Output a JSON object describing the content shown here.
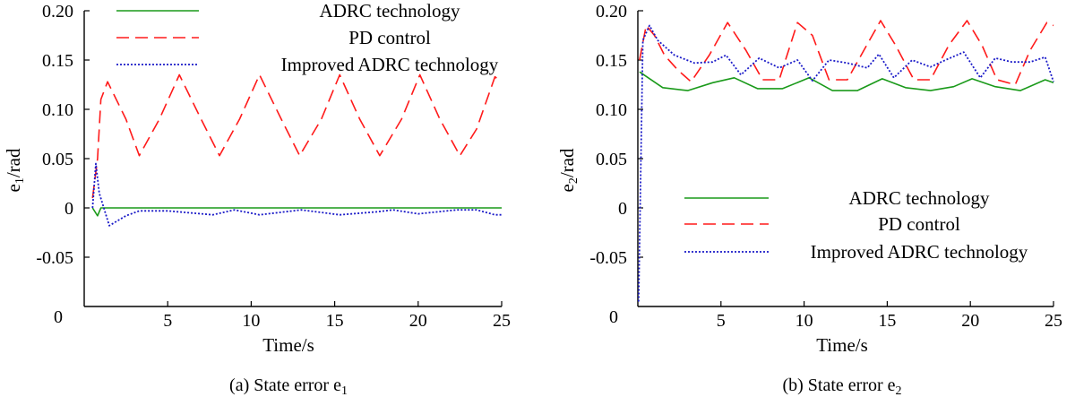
{
  "chart_data": [
    {
      "type": "line",
      "id": "a",
      "caption": "(a) State error e",
      "caption_sub": "1",
      "xlabel": "Time/s",
      "ylabel_main": "e",
      "ylabel_sub": "1",
      "ylabel_unit": "/rad",
      "xlim": [
        0,
        25
      ],
      "ylim": [
        -0.1,
        0.2
      ],
      "xticks": [
        0,
        5,
        10,
        15,
        20,
        25
      ],
      "xtick_labels": [
        "0",
        "5",
        "10",
        "15",
        "20",
        "25"
      ],
      "yticks": [
        -0.05,
        0,
        0.05,
        0.1,
        0.15,
        0.2
      ],
      "ytick_labels": [
        "-0.05",
        "0",
        "0.05",
        "0.10",
        "0.15",
        "0.20"
      ],
      "origin_label": "0",
      "legend_position": "top",
      "series": [
        {
          "name": "ADRC technology",
          "color": "#1a9a1a",
          "style": "solid",
          "x": [
            0.5,
            0.8,
            1.0,
            1.5,
            3,
            5,
            8,
            10,
            13,
            15,
            18,
            20,
            23,
            25
          ],
          "y": [
            0.0,
            -0.008,
            0.0,
            0.0,
            0.0,
            0.0,
            0.0,
            0.0,
            0.0,
            0.0,
            0.0,
            0.0,
            0.0,
            0.0
          ]
        },
        {
          "name": "PD control",
          "color": "#ff1a1a",
          "style": "dashed",
          "x": [
            0.5,
            0.8,
            1.0,
            1.4,
            2.5,
            3.3,
            4.5,
            5.7,
            7.0,
            8.1,
            9.3,
            10.5,
            11.8,
            12.9,
            14.2,
            15.3,
            16.5,
            17.7,
            19.0,
            20.1,
            21.3,
            22.5,
            23.5,
            24.6,
            25.0
          ],
          "y": [
            0.01,
            0.05,
            0.11,
            0.128,
            0.09,
            0.053,
            0.09,
            0.135,
            0.09,
            0.053,
            0.09,
            0.135,
            0.09,
            0.053,
            0.09,
            0.135,
            0.09,
            0.053,
            0.09,
            0.135,
            0.09,
            0.053,
            0.08,
            0.133,
            0.128
          ]
        },
        {
          "name": "Improved ADRC technology",
          "color": "#1a1ac8",
          "style": "dotted",
          "x": [
            0.5,
            0.7,
            0.9,
            1.5,
            2.5,
            3.3,
            5,
            7.7,
            9,
            10.5,
            13,
            15.3,
            17.5,
            18.5,
            20,
            22.3,
            23.5,
            24.6,
            25
          ],
          "y": [
            0.0,
            0.045,
            0.015,
            -0.018,
            -0.008,
            -0.003,
            -0.003,
            -0.007,
            -0.002,
            -0.007,
            -0.002,
            -0.007,
            -0.004,
            -0.002,
            -0.006,
            -0.002,
            -0.002,
            -0.007,
            -0.007
          ]
        }
      ]
    },
    {
      "type": "line",
      "id": "b",
      "caption": "(b) State error e",
      "caption_sub": "2",
      "xlabel": "Time/s",
      "ylabel_main": "e",
      "ylabel_sub": "2",
      "ylabel_unit": "/rad",
      "xlim": [
        0,
        25
      ],
      "ylim": [
        -0.1,
        0.2
      ],
      "xticks": [
        0,
        5,
        10,
        15,
        20,
        25
      ],
      "xtick_labels": [
        "0",
        "5",
        "10",
        "15",
        "20",
        "25"
      ],
      "yticks": [
        -0.05,
        0,
        0.05,
        0.1,
        0.15,
        0.2
      ],
      "ytick_labels": [
        "-0.05",
        "0",
        "0.05",
        "0.10",
        "0.15",
        "0.20"
      ],
      "origin_label": "0",
      "legend_position": "center-right",
      "series": [
        {
          "name": "ADRC technology",
          "color": "#1a9a1a",
          "style": "solid",
          "x": [
            0.1,
            1.5,
            3.0,
            4.5,
            5.8,
            7.2,
            8.7,
            10.3,
            11.7,
            13.2,
            14.7,
            16.1,
            17.6,
            19.0,
            20.1,
            21.5,
            23.0,
            24.5,
            25.0
          ],
          "y": [
            0.138,
            0.122,
            0.119,
            0.127,
            0.132,
            0.121,
            0.121,
            0.132,
            0.119,
            0.119,
            0.131,
            0.122,
            0.119,
            0.123,
            0.131,
            0.123,
            0.119,
            0.13,
            0.127
          ]
        },
        {
          "name": "PD control",
          "color": "#ff1a1a",
          "style": "dashed",
          "x": [
            0.1,
            0.5,
            1.0,
            1.6,
            2.4,
            3.2,
            4.3,
            5.4,
            6.5,
            7.5,
            8.5,
            9.6,
            10.5,
            11.5,
            12.6,
            13.6,
            14.6,
            15.5,
            16.6,
            17.6,
            18.7,
            19.8,
            20.7,
            21.6,
            22.7,
            23.6,
            24.6,
            25.0
          ],
          "y": [
            0.15,
            0.185,
            0.175,
            0.155,
            0.14,
            0.128,
            0.155,
            0.188,
            0.16,
            0.13,
            0.13,
            0.188,
            0.175,
            0.13,
            0.13,
            0.16,
            0.19,
            0.165,
            0.13,
            0.13,
            0.165,
            0.19,
            0.165,
            0.13,
            0.125,
            0.16,
            0.188,
            0.185
          ]
        },
        {
          "name": "Improved ADRC technology",
          "color": "#1a1ac8",
          "style": "dotted",
          "x": [
            0.05,
            0.3,
            0.7,
            1.2,
            2.2,
            3.4,
            4.5,
            5.3,
            6.2,
            7.3,
            8.5,
            9.6,
            10.5,
            11.5,
            12.6,
            13.8,
            14.5,
            15.4,
            16.5,
            17.6,
            18.5,
            19.6,
            20.6,
            21.5,
            22.5,
            23.6,
            24.5,
            25.0
          ],
          "y": [
            -0.095,
            0.17,
            0.185,
            0.17,
            0.155,
            0.147,
            0.148,
            0.155,
            0.135,
            0.152,
            0.142,
            0.15,
            0.129,
            0.15,
            0.147,
            0.142,
            0.156,
            0.132,
            0.15,
            0.143,
            0.15,
            0.158,
            0.132,
            0.152,
            0.148,
            0.148,
            0.153,
            0.128
          ]
        }
      ]
    }
  ]
}
